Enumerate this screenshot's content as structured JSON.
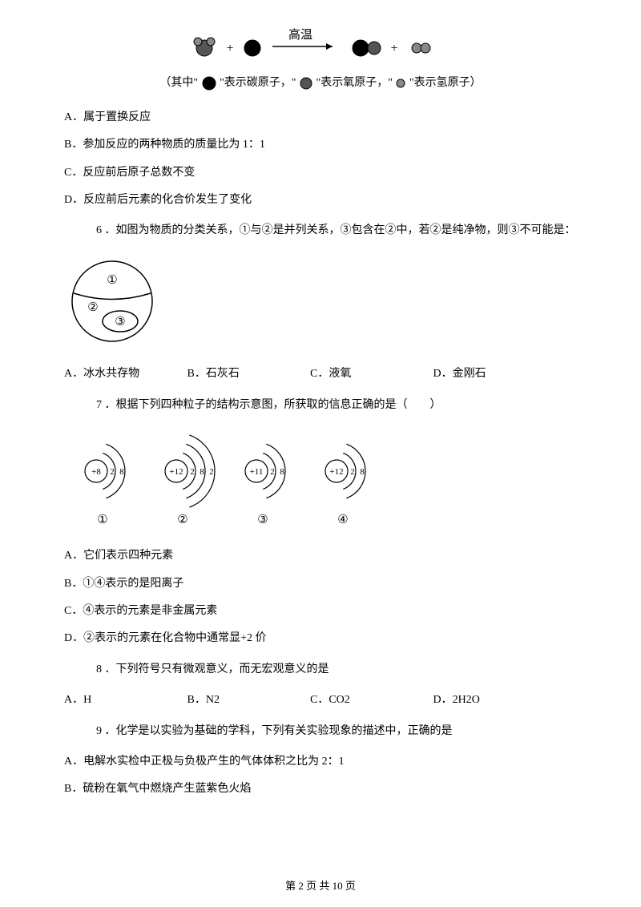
{
  "reaction": {
    "arrow_label": "高温",
    "plus": "+",
    "atom_colors": {
      "carbon": "#000000",
      "oxygen": "#555555",
      "hydrogen": "#888888",
      "stroke": "#000000"
    },
    "radii": {
      "large": 10,
      "medium": 7,
      "small": 5
    }
  },
  "legend": {
    "pre": "（其中\"",
    "carbon_label": "\"表示碳原子，\"",
    "oxygen_label": "\"表示氧原子，\"",
    "hydrogen_label": "\"表示氢原子）"
  },
  "q5_options": {
    "A": "A．属于置换反应",
    "B": "B．参加反应的两种物质的质量比为 1：1",
    "C": "C．反应前后原子总数不变",
    "D": "D．反应前后元素的化合价发生了变化"
  },
  "q6": {
    "stem": "6 ．如图为物质的分类关系，①与②是并列关系，③包含在②中，若②是纯净物，则③不可能是：",
    "venn": {
      "l1": "①",
      "l2": "②",
      "l3": "③"
    },
    "opts": {
      "A": "A．冰水共存物",
      "B": "B．石灰石",
      "C": "C．液氧",
      "D": "D．金刚石"
    }
  },
  "q7": {
    "stem": "7 ．根据下列四种粒子的结构示意图，所获取的信息正确的是（　　）",
    "atoms": [
      {
        "nucleus": "+8",
        "shells": [
          "2",
          "8"
        ],
        "label": "①"
      },
      {
        "nucleus": "+12",
        "shells": [
          "2",
          "8",
          "2"
        ],
        "label": "②"
      },
      {
        "nucleus": "+11",
        "shells": [
          "2",
          "8"
        ],
        "label": "③"
      },
      {
        "nucleus": "+12",
        "shells": [
          "2",
          "8"
        ],
        "label": "④"
      }
    ],
    "opts": {
      "A": "A．它们表示四种元素",
      "B": "B．①④表示的是阳离子",
      "C": "C．④表示的元素是非金属元素",
      "D": "D．②表示的元素在化合物中通常显+2 价"
    }
  },
  "q8": {
    "stem": "8 ．下列符号只有微观意义，而无宏观意义的是",
    "opts": {
      "A": "A．H",
      "B": "B．N2",
      "C": "C．CO2",
      "D": "D．2H2O"
    }
  },
  "q9": {
    "stem": "9 ．化学是以实验为基础的学科，下列有关实验现象的描述中，正确的是",
    "opts": {
      "A": "A．电解水实检中正极与负极产生的气体体积之比为 2：1",
      "B": "B．硫粉在氧气中燃烧产生蓝紫色火焰"
    }
  },
  "footer": "第 2 页 共 10 页"
}
